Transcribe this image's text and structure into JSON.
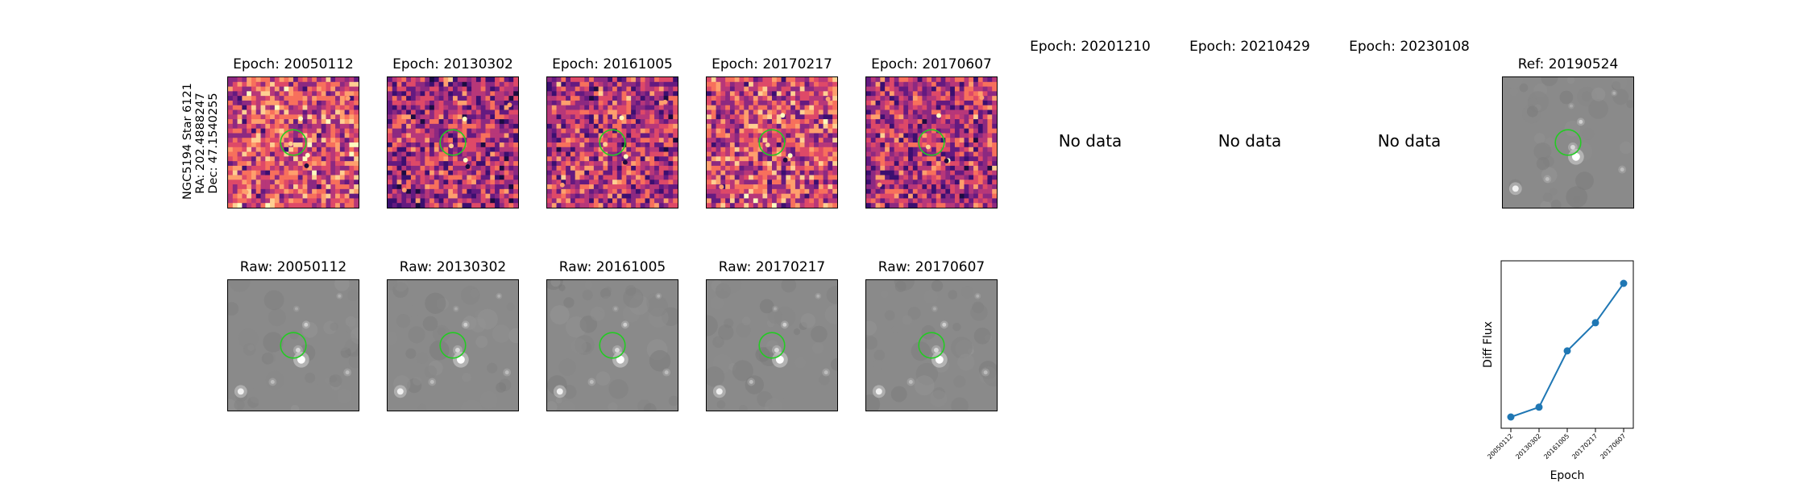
{
  "side_label": {
    "line1": "NGC5194 Star 6121",
    "line2": "RA: 202.4888247",
    "line3": "Dec: 47.1540255"
  },
  "top_row": [
    {
      "title": "Epoch: 20050112",
      "has_data": true
    },
    {
      "title": "Epoch: 20130302",
      "has_data": true
    },
    {
      "title": "Epoch: 20161005",
      "has_data": true
    },
    {
      "title": "Epoch: 20170217",
      "has_data": true
    },
    {
      "title": "Epoch: 20170607",
      "has_data": true
    },
    {
      "title": "Epoch: 20201210",
      "has_data": false,
      "no_data_text": "No data"
    },
    {
      "title": "Epoch: 20210429",
      "has_data": false,
      "no_data_text": "No data"
    },
    {
      "title": "Epoch: 20230108",
      "has_data": false,
      "no_data_text": "No data"
    },
    {
      "title": "Ref: 20190524",
      "has_data": true
    }
  ],
  "bottom_row": [
    {
      "title": "Raw: 20050112"
    },
    {
      "title": "Raw: 20130302"
    },
    {
      "title": "Raw: 20161005"
    },
    {
      "title": "Raw: 20170217"
    },
    {
      "title": "Raw: 20170607"
    }
  ],
  "colors": {
    "circle": "#22cc22",
    "series": "#1f77b4",
    "raw_background": "#8a8a8a",
    "diff_background": "#b8457a"
  },
  "chart_data": {
    "type": "line",
    "x": [
      "20050112",
      "20130302",
      "20161005",
      "20170217",
      "20170607"
    ],
    "series": [
      {
        "values": [
          0.05,
          0.12,
          0.52,
          0.72,
          1.0
        ]
      }
    ],
    "xlabel": "Epoch",
    "ylabel": "Diff Flux",
    "yticks_shown": false
  }
}
